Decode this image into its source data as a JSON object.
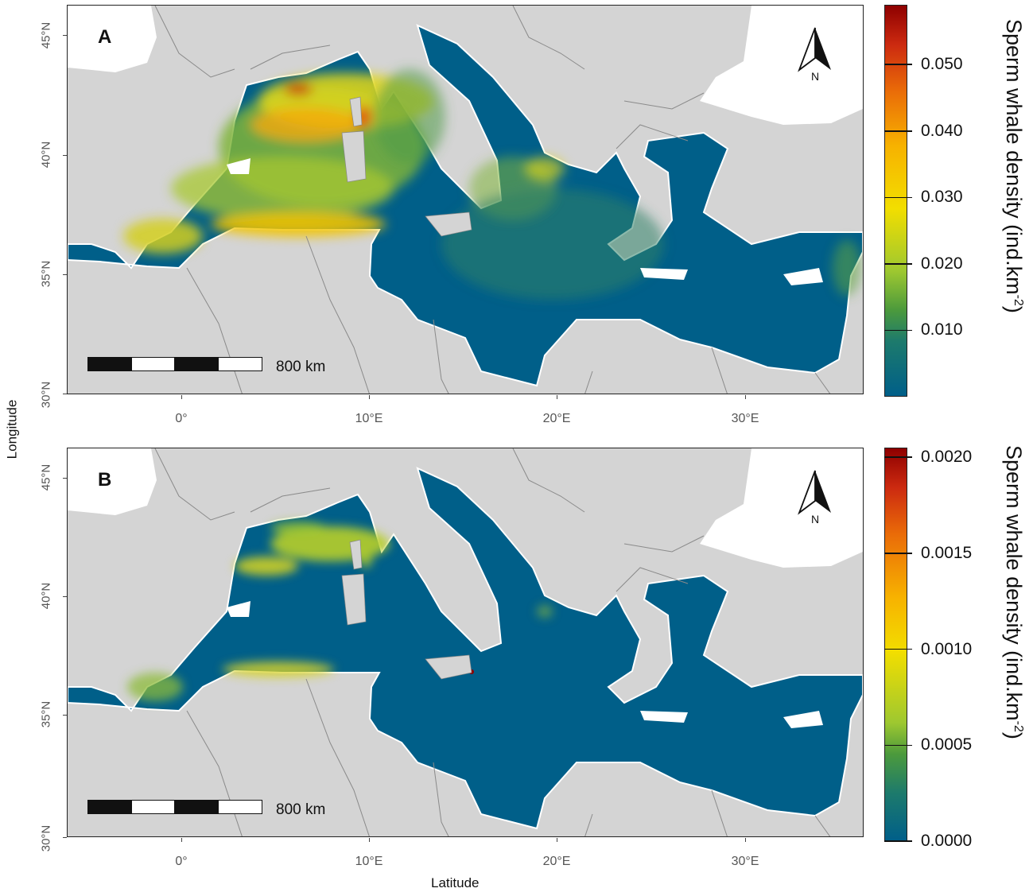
{
  "panels": [
    {
      "letter": "A",
      "scale_label": "800 km",
      "north_label": "N",
      "colorbar": {
        "title": "Sperm whale density (ind.km",
        "title_sup": "-2",
        "title_close": ")",
        "min": 0,
        "max": 0.059,
        "ticks": [
          {
            "value": 0.01,
            "label": "0.010"
          },
          {
            "value": 0.02,
            "label": "0.020"
          },
          {
            "value": 0.03,
            "label": "0.030"
          },
          {
            "value": 0.04,
            "label": "0.040"
          },
          {
            "value": 0.05,
            "label": "0.050"
          }
        ]
      }
    },
    {
      "letter": "B",
      "scale_label": "800 km",
      "north_label": "N",
      "colorbar": {
        "title": "Sperm whale density (ind.km",
        "title_sup": "-2",
        "title_close": ")",
        "min": 0,
        "max": 0.00205,
        "ticks": [
          {
            "value": 0.0,
            "label": "0.0000"
          },
          {
            "value": 0.0005,
            "label": "0.0005"
          },
          {
            "value": 0.001,
            "label": "0.0010"
          },
          {
            "value": 0.0015,
            "label": "0.0015"
          },
          {
            "value": 0.002,
            "label": "0.0020"
          }
        ]
      }
    }
  ],
  "axes": {
    "y_ticks": [
      "45°N",
      "40°N",
      "35°N",
      "30°N"
    ],
    "x_ticks": [
      "0°",
      "10°E",
      "20°E",
      "30°E"
    ],
    "y_title": "Longitude",
    "x_title": "Latitude"
  },
  "colors": {
    "land": "#d4d4d4",
    "sea_low": "#005f89",
    "outside": "#ffffff",
    "border": "#8a8a8a"
  }
}
